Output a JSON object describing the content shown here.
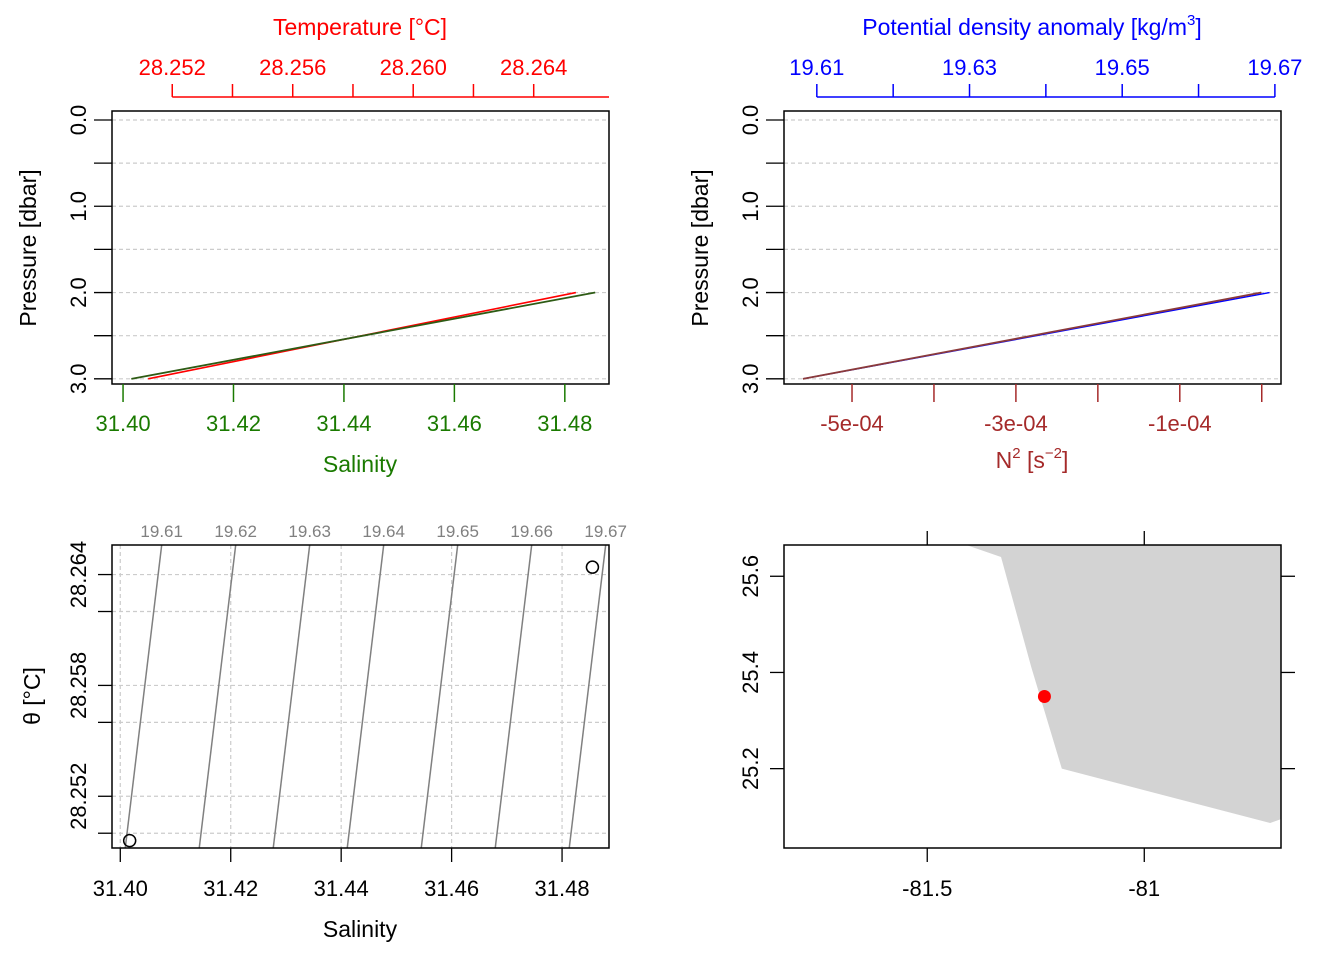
{
  "colors": {
    "temperature": "#ff0000",
    "salinity": "#1a7a00",
    "density": "#0000ff",
    "n2": "#a52a2a",
    "profile_line": "#2d5b14",
    "n2_line": "#8b3a3a",
    "isopycnal": "#808080",
    "land": "#d3d3d3",
    "station": "#ff0000"
  },
  "chart_data": [
    {
      "type": "line",
      "panel": "top-left",
      "top_axis": {
        "label": "Temperature [°C]",
        "ticks": [
          28.252,
          28.256,
          28.26,
          28.264
        ],
        "tick_labels": [
          "28.252",
          "28.256",
          "28.260",
          "28.264"
        ],
        "minor_ticks": [
          28.254,
          28.258,
          28.262
        ],
        "range": [
          28.25,
          28.2665
        ]
      },
      "bottom_axis": {
        "label": "Salinity",
        "ticks": [
          31.4,
          31.42,
          31.44,
          31.46,
          31.48
        ],
        "tick_labels": [
          "31.40",
          "31.42",
          "31.44",
          "31.46",
          "31.48"
        ],
        "range": [
          31.398,
          31.488
        ]
      },
      "y_axis": {
        "label": "Pressure [dbar]",
        "ticks": [
          0,
          1,
          2,
          3
        ],
        "tick_labels": [
          "0.0",
          "1.0",
          "2.0",
          "3.0"
        ],
        "minor_ticks": [
          0.5,
          1.5,
          2.5
        ],
        "range": [
          0,
          3.06
        ],
        "reversed": true
      },
      "grid": true,
      "series": [
        {
          "variable": "salinity",
          "x": [
            31.4015,
            31.4855
          ],
          "y": [
            3.0,
            2.0
          ]
        },
        {
          "variable": "temperature",
          "x": [
            28.2512,
            28.2654
          ],
          "y": [
            3.0,
            2.0
          ]
        }
      ]
    },
    {
      "type": "line",
      "panel": "top-right",
      "top_axis": {
        "label": "Potential density anomaly [kg/m",
        "label_sup": "3",
        "label_end": "]",
        "ticks": [
          19.61,
          19.63,
          19.65,
          19.67
        ],
        "tick_labels": [
          "19.61",
          "19.63",
          "19.65",
          "19.67"
        ],
        "minor_ticks": [
          19.62,
          19.64,
          19.66
        ],
        "range": [
          19.6057,
          19.6708
        ]
      },
      "bottom_axis": {
        "label": "N",
        "label_sup": "2",
        "label_units": " [s",
        "label_units_sup": "−2",
        "label_end": "]",
        "ticks": [
          -0.0005,
          -0.0003,
          -0.0001
        ],
        "tick_labels": [
          "-5e-04",
          "-3e-04",
          "-1e-04"
        ],
        "minor_ticks": [
          -0.0004,
          -0.0002,
          0.0
        ],
        "range": [
          -0.000583,
          2.35e-05
        ]
      },
      "y_axis": {
        "label": "Pressure [dbar]",
        "ticks": [
          0,
          1,
          2,
          3
        ],
        "tick_labels": [
          "0.0",
          "1.0",
          "2.0",
          "3.0"
        ],
        "minor_ticks": [
          0.5,
          1.5,
          2.5
        ],
        "range": [
          0,
          3.06
        ],
        "reversed": true
      },
      "grid": true,
      "series": [
        {
          "variable": "density",
          "x": [
            19.6082,
            19.6693
          ],
          "y": [
            3.0,
            2.0
          ]
        },
        {
          "variable": "n2",
          "x": [
            -0.00056,
            -5e-07
          ],
          "y": [
            3.0,
            2.0
          ]
        }
      ]
    },
    {
      "type": "scatter",
      "panel": "bottom-left",
      "x_axis": {
        "label": "Salinity",
        "ticks": [
          31.4,
          31.42,
          31.44,
          31.46,
          31.48
        ],
        "tick_labels": [
          "31.40",
          "31.42",
          "31.44",
          "31.46",
          "31.48"
        ],
        "range": [
          31.3985,
          31.4885
        ]
      },
      "y_axis": {
        "label": "θ [°C]",
        "ticks": [
          28.252,
          28.258,
          28.264
        ],
        "tick_labels": [
          "28.252",
          "28.258",
          "28.264"
        ],
        "minor_ticks": [
          28.25,
          28.256,
          28.262
        ],
        "range": [
          28.2492,
          28.2656
        ]
      },
      "grid": true,
      "points": [
        {
          "x": 31.4017,
          "y": 28.2496
        },
        {
          "x": 31.4855,
          "y": 28.2644
        }
      ],
      "isopycnals": [
        {
          "label": "19.61",
          "bottom_x": 31.4009,
          "top_x": 31.4075
        },
        {
          "label": "19.62",
          "bottom_x": 31.4143,
          "top_x": 31.4209
        },
        {
          "label": "19.63",
          "bottom_x": 31.4277,
          "top_x": 31.4343
        },
        {
          "label": "19.64",
          "bottom_x": 31.4411,
          "top_x": 31.4477
        },
        {
          "label": "19.65",
          "bottom_x": 31.4545,
          "top_x": 31.4611
        },
        {
          "label": "19.66",
          "bottom_x": 31.4679,
          "top_x": 31.4745
        },
        {
          "label": "19.67",
          "bottom_x": 31.4813,
          "top_x": 31.4879
        }
      ]
    },
    {
      "type": "scatter",
      "panel": "bottom-right",
      "x_axis": {
        "ticks": [
          -81.5,
          -81.0
        ],
        "tick_labels": [
          "-81.5",
          "-81"
        ],
        "range": [
          -81.83,
          -80.685
        ]
      },
      "y_axis": {
        "ticks": [
          25.2,
          25.4,
          25.6
        ],
        "tick_labels": [
          "25.2",
          "25.4",
          "25.6"
        ],
        "range": [
          25.035,
          25.665
        ]
      },
      "land": [
        [
          -81.41,
          25.665
        ],
        [
          -81.33,
          25.64
        ],
        [
          -81.26,
          25.41
        ],
        [
          -81.19,
          25.2
        ],
        [
          -80.71,
          25.087
        ],
        [
          -80.685,
          25.095
        ],
        [
          -80.685,
          25.665
        ]
      ],
      "station": {
        "lon": -81.23,
        "lat": 25.35
      }
    }
  ]
}
